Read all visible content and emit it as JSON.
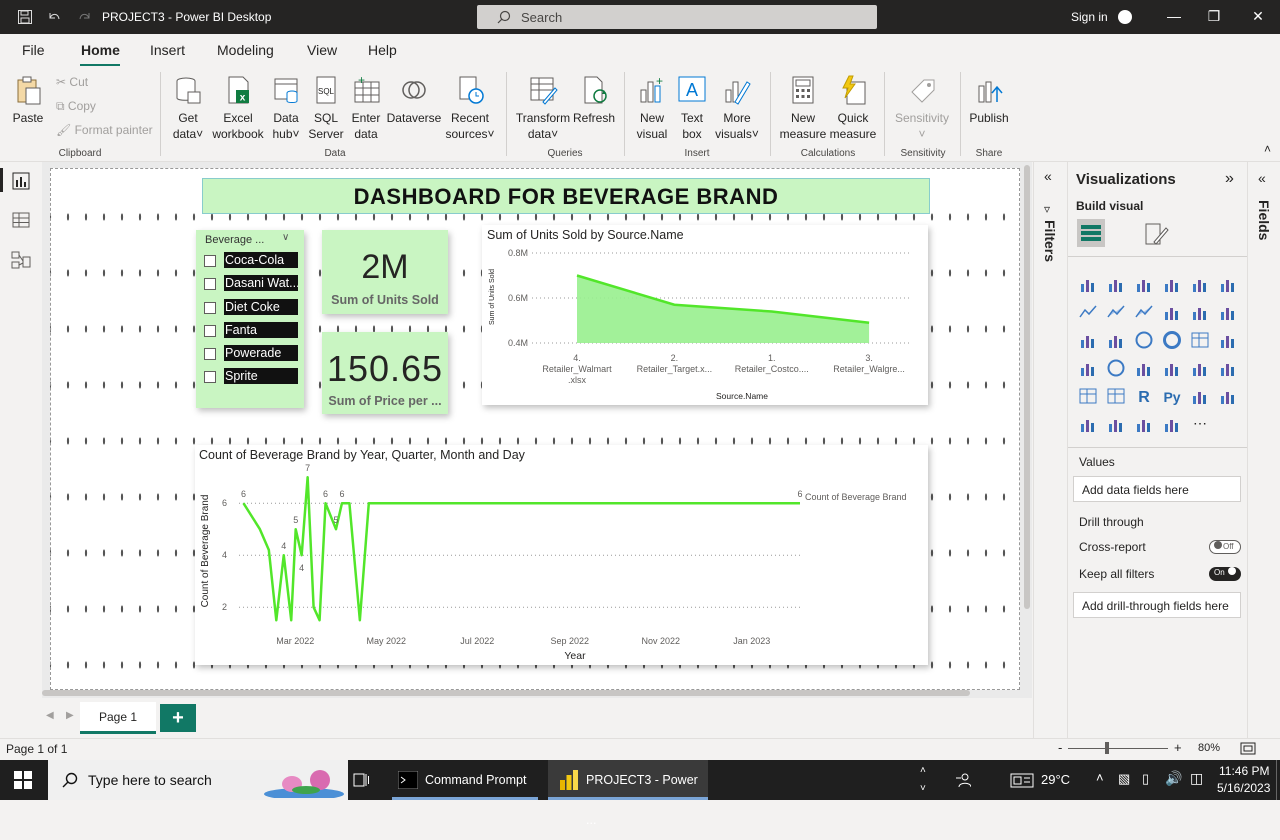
{
  "titlebar": {
    "title": "PROJECT3 - Power BI Desktop",
    "search_label": "Search",
    "sign_in": "Sign in"
  },
  "menu": {
    "items": [
      "File",
      "Home",
      "Insert",
      "Modeling",
      "View",
      "Help"
    ],
    "active": "Home"
  },
  "ribbon": {
    "clipboard": {
      "paste": "Paste",
      "cut": "Cut",
      "copy": "Copy",
      "format_painter": "Format painter",
      "group": "Clipboard"
    },
    "data": {
      "get_data": [
        "Get",
        "data"
      ],
      "excel": [
        "Excel",
        "workbook"
      ],
      "data_hub": [
        "Data",
        "hub"
      ],
      "sql": [
        "SQL",
        "Server"
      ],
      "enter": [
        "Enter",
        "data"
      ],
      "dataverse": "Dataverse",
      "recent": [
        "Recent",
        "sources"
      ],
      "group": "Data"
    },
    "queries": {
      "transform": [
        "Transform",
        "data"
      ],
      "refresh": "Refresh",
      "group": "Queries"
    },
    "insert": {
      "new_visual": [
        "New",
        "visual"
      ],
      "text_box": [
        "Text",
        "box"
      ],
      "more_visuals": [
        "More",
        "visuals"
      ],
      "group": "Insert"
    },
    "calculations": {
      "new_measure": [
        "New",
        "measure"
      ],
      "quick_measure": [
        "Quick",
        "measure"
      ],
      "group": "Calculations"
    },
    "sensitivity": {
      "label": "Sensitivity",
      "group": "Sensitivity"
    },
    "share": {
      "publish": "Publish",
      "group": "Share"
    }
  },
  "dashboard": {
    "title": "DASHBOARD FOR BEVERAGE BRAND",
    "slicer": {
      "header": "Beverage ...",
      "items": [
        "Coca-Cola",
        "Dasani Wat...",
        "Diet Coke",
        "Fanta",
        "Powerade",
        "Sprite"
      ]
    },
    "kpi1": {
      "value": "2M",
      "label": "Sum of Units Sold"
    },
    "kpi2": {
      "value": "150.65",
      "label": "Sum of Price per ..."
    }
  },
  "chart_data": [
    {
      "type": "area",
      "title": "Sum of Units Sold by Source.Name",
      "xlabel": "Source.Name",
      "ylabel": "Sum of Units Sold",
      "categories": [
        "4. Retailer_Walmart .xlsx",
        "2. Retailer_Target.x...",
        "1. Retailer_Costco....",
        "3. Retailer_Walgre..."
      ],
      "category_lines": [
        [
          "4.",
          "Retailer_Walmart",
          ".xlsx"
        ],
        [
          "2.",
          "Retailer_Target.x..."
        ],
        [
          "1.",
          "Retailer_Costco...."
        ],
        [
          "3.",
          "Retailer_Walgre..."
        ]
      ],
      "values": [
        0.7,
        0.57,
        0.54,
        0.49
      ],
      "value_unit": "M",
      "yticks": [
        "0.8M",
        "0.6M",
        "0.4M"
      ],
      "ylim": [
        0.4,
        0.8
      ],
      "color": "#98f08e",
      "line_color": "#52e62a",
      "grid": true
    },
    {
      "type": "line",
      "title": "Count of Beverage Brand by Year, Quarter, Month and Day",
      "xlabel": "Year",
      "ylabel": "Count of Beverage Brand",
      "series": [
        {
          "name": "Count of Beverage Brand",
          "values": [
            6,
            5,
            4.2,
            1.5,
            4,
            1.5,
            5,
            4,
            7,
            2,
            1.5,
            6,
            5,
            6,
            6,
            1.5,
            6,
            6,
            6,
            6,
            6,
            6
          ]
        }
      ],
      "x": [
        "2022-01-28",
        "2022-02-08",
        "2022-02-14",
        "2022-02-19",
        "2022-02-24",
        "2022-03-01",
        "2022-03-04",
        "2022-03-08",
        "2022-03-12",
        "2022-03-16",
        "2022-03-20",
        "2022-03-24",
        "2022-03-31",
        "2022-04-04",
        "2022-04-09",
        "2022-04-16",
        "2022-04-22",
        "2022-05-15",
        "2022-08-01",
        "2022-11-01",
        "2023-01-15",
        "2023-02-05"
      ],
      "data_labels": [
        "6",
        "4",
        "5",
        "4",
        "7",
        "6",
        "5",
        "6",
        "6"
      ],
      "yticks": [
        "6",
        "4",
        "2"
      ],
      "ylim": [
        1.2,
        7.2
      ],
      "xticks": [
        "Mar 2022",
        "May 2022",
        "Jul 2022",
        "Sep 2022",
        "Nov 2022",
        "Jan 2023"
      ],
      "color": "#52e62a",
      "legend": "right"
    }
  ],
  "panes": {
    "filters": "Filters",
    "visualizations": "Visualizations",
    "build_visual": "Build visual",
    "fields": "Fields",
    "values_label": "Values",
    "values_placeholder": "Add data fields here",
    "drill_through": "Drill through",
    "cross_report": "Cross-report",
    "cross_report_state": "Off",
    "keep_filters": "Keep all filters",
    "keep_filters_state": "On",
    "drill_placeholder": "Add drill-through fields here"
  },
  "pages": {
    "tab": "Page 1",
    "add": "+",
    "status": "Page 1 of 1",
    "zoom": "80%"
  },
  "taskbar": {
    "search": "Type here to search",
    "app1": "Command Prompt",
    "app2": "PROJECT3 - Power ...",
    "temp": "29°C",
    "time": "11:46 PM",
    "date": "5/16/2023"
  }
}
